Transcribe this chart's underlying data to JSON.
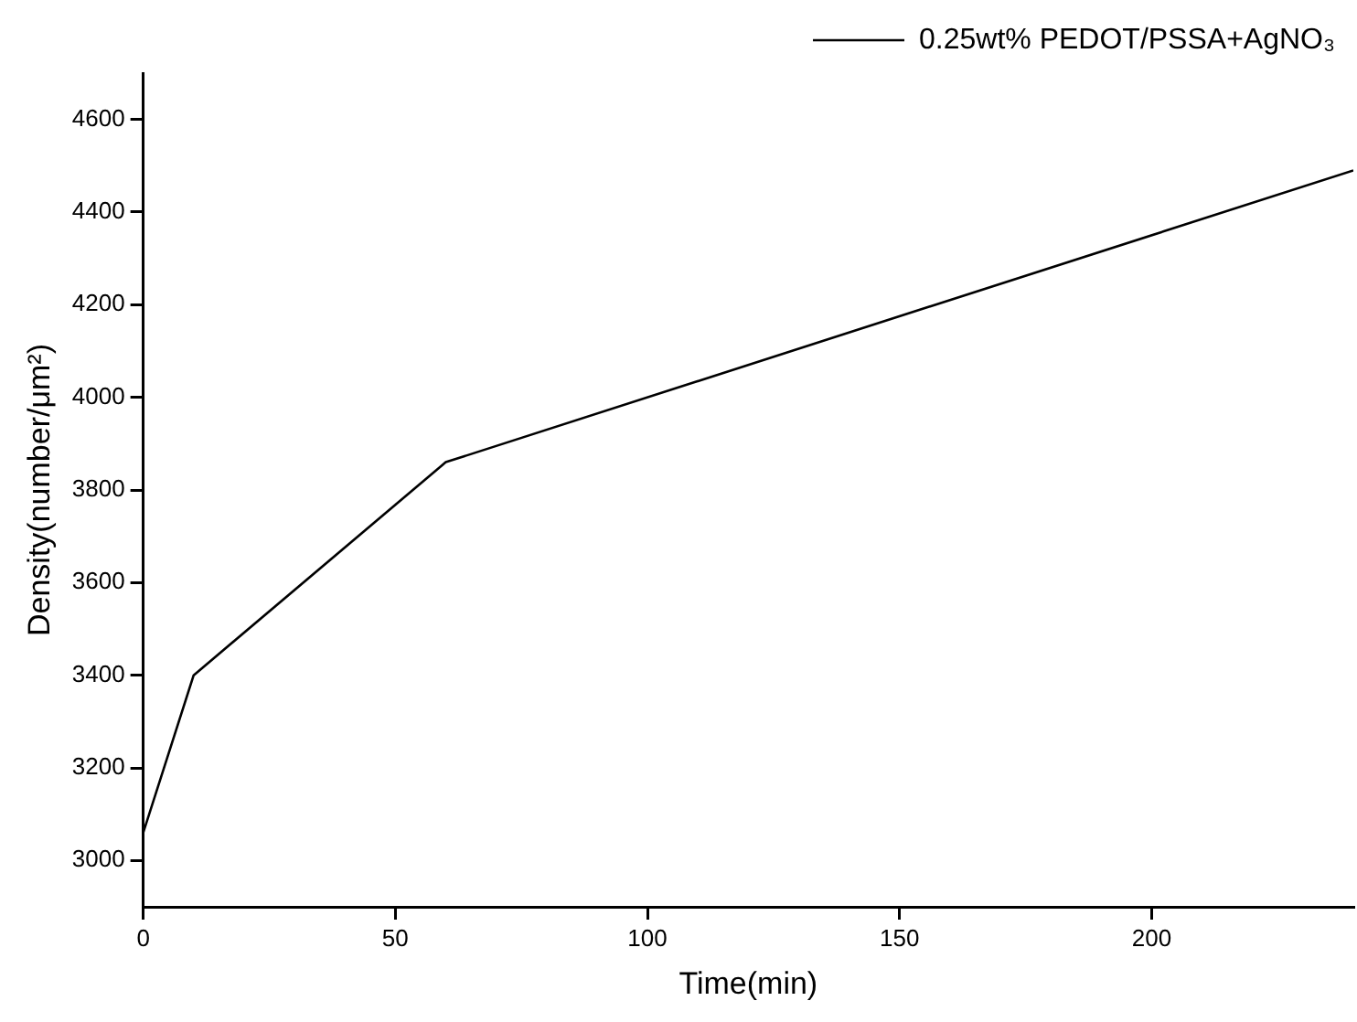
{
  "chart_data": {
    "type": "line",
    "xlabel": "Time(min)",
    "ylabel": "Density(number/μm²)",
    "x": [
      0,
      10,
      60,
      240
    ],
    "series": [
      {
        "name": "0.25wt% PEDOT/PSSA+AgNO₃",
        "color": "#000000",
        "values": [
          3060,
          3400,
          3860,
          4490
        ]
      }
    ],
    "xlim": [
      0,
      240
    ],
    "xticks": [
      0,
      50,
      100,
      150,
      200
    ],
    "ylim": [
      2900,
      4700
    ],
    "yticks": [
      3000,
      3200,
      3400,
      3600,
      3800,
      4000,
      4200,
      4400,
      4600
    ],
    "grid": false,
    "legend": "top right",
    "marker": "none",
    "line_style": "solid"
  }
}
